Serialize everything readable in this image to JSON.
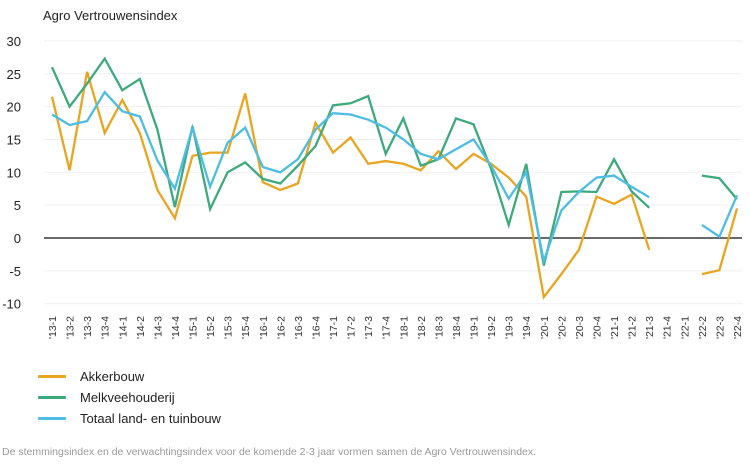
{
  "chart_data": {
    "type": "line",
    "title": "Agro Vertrouwensindex",
    "xlabel": "",
    "ylabel": "",
    "ylim": [
      -10,
      30
    ],
    "yticks": [
      30,
      25,
      20,
      15,
      10,
      5,
      0,
      -5,
      -10
    ],
    "grid": true,
    "legend_position": "bottom-left",
    "categories": [
      "'13-1",
      "'13-2",
      "'13-3",
      "'13-4",
      "'14-1",
      "'14-2",
      "'14-3",
      "'14-4",
      "'15-1",
      "'15-2",
      "'15-3",
      "'15-4",
      "'16-1",
      "'16-2",
      "'16-3",
      "'16-4",
      "'17-1",
      "'17-2",
      "'17-3",
      "'17-4",
      "'18-1",
      "'18-2",
      "'18-3",
      "'18-4",
      "'19-1",
      "'19-2",
      "'19-3",
      "'19-4",
      "'20-1",
      "'20-2",
      "'20-3",
      "'20-4",
      "'21-1",
      "'21-2",
      "'21-3",
      "'21-4",
      "'22-1",
      "'22-2",
      "'22-3",
      "'22-4"
    ],
    "series": [
      {
        "name": "Akkerbouw",
        "color": "#E9A520",
        "values": [
          21.5,
          10.3,
          25.3,
          16,
          21,
          16,
          7.3,
          3,
          12.5,
          13,
          13,
          22,
          8.5,
          7.3,
          8.3,
          17.5,
          13,
          15.3,
          11.3,
          11.7,
          11.3,
          10.3,
          13.2,
          10.5,
          12.8,
          11.3,
          9.2,
          6.3,
          -9,
          -5.5,
          -1.8,
          6.3,
          5.2,
          6.6,
          -1.8,
          null,
          null,
          -5.5,
          -4.9,
          4.5
        ]
      },
      {
        "name": "Melkveehouderij",
        "color": "#3DAA7D",
        "values": [
          26,
          20,
          23.5,
          27.3,
          22.5,
          24.2,
          16.5,
          4.7,
          17,
          4.4,
          10,
          11.5,
          9,
          8.3,
          11,
          14,
          20.2,
          20.5,
          21.6,
          12.8,
          18.2,
          11,
          12,
          18.2,
          17.3,
          10.5,
          2,
          11.3,
          -4.2,
          7,
          7.1,
          7,
          12,
          7.1,
          4.6,
          null,
          null,
          9.5,
          9.1,
          5.9
        ]
      },
      {
        "name": "Totaal land- en tuinbouw",
        "color": "#4DBDE3",
        "values": [
          18.8,
          17.2,
          17.8,
          22.2,
          19.3,
          18.5,
          11.8,
          7.5,
          16.8,
          7.8,
          14.5,
          16.8,
          10.8,
          10,
          12,
          16.5,
          19,
          18.8,
          18,
          16.8,
          15,
          12.8,
          12,
          13.5,
          15,
          11,
          6,
          10,
          -3.5,
          4.2,
          7,
          9.2,
          9.5,
          7.8,
          6.2,
          null,
          null,
          2,
          0.2,
          6.5
        ]
      }
    ]
  },
  "footnote": "De stemmingsindex en de verwachtingsindex voor de komende 2-3 jaar vormen samen de Agro Vertrouwensindex."
}
